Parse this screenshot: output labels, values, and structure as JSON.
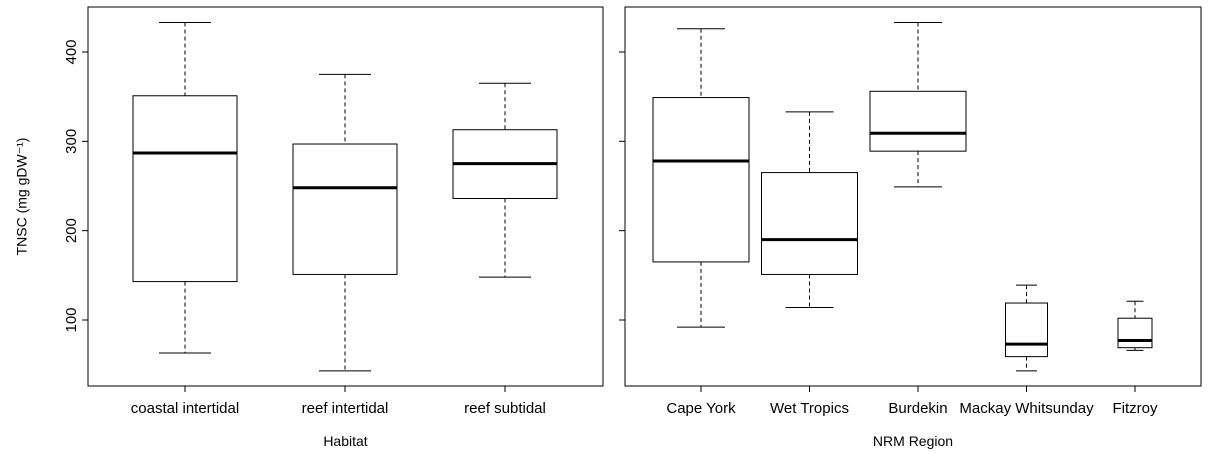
{
  "chart_data": [
    {
      "type": "boxplot",
      "xlabel": "Habitat",
      "ylabel": "TNSC (mg gDW⁻¹)",
      "ylim": [
        30,
        450
      ],
      "yticks": [
        100,
        200,
        300,
        400
      ],
      "categories": [
        "coastal intertidal",
        "reef intertidal",
        "reef subtidal"
      ],
      "boxes": [
        {
          "min": 63,
          "q1": 143,
          "median": 287,
          "q3": 351,
          "max": 433
        },
        {
          "min": 43,
          "q1": 151,
          "median": 248,
          "q3": 297,
          "max": 375
        },
        {
          "min": 148,
          "q1": 236,
          "median": 275,
          "q3": 313,
          "max": 365
        }
      ]
    },
    {
      "type": "boxplot",
      "xlabel": "NRM Region",
      "ylim": [
        30,
        450
      ],
      "yticks": [
        100,
        200,
        300,
        400
      ],
      "categories": [
        "Cape York",
        "Wet Tropics",
        "Burdekin",
        "Mackay Whitsunday",
        "Fitzroy"
      ],
      "boxes": [
        {
          "min": 92,
          "q1": 165,
          "median": 278,
          "q3": 349,
          "max": 426
        },
        {
          "min": 114,
          "q1": 151,
          "median": 190,
          "q3": 265,
          "max": 333
        },
        {
          "min": 249,
          "q1": 289,
          "median": 309,
          "q3": 356,
          "max": 433
        },
        {
          "min": 43,
          "q1": 59,
          "median": 73,
          "q3": 119,
          "max": 139
        },
        {
          "min": 66,
          "q1": 69,
          "median": 77,
          "q3": 102,
          "max": 121
        }
      ]
    }
  ]
}
